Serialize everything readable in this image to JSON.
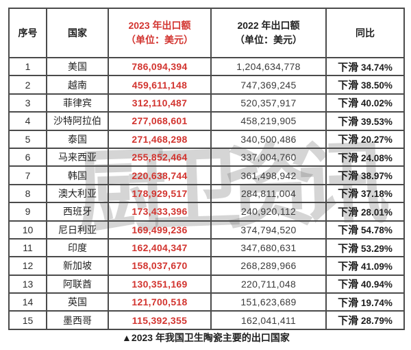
{
  "watermark": {
    "text": "厨卫资讯"
  },
  "colors": {
    "accent_red": "#d2342f",
    "border": "#4a4a4a",
    "text": "#262626"
  },
  "table": {
    "headers": [
      {
        "label": "序号"
      },
      {
        "label": "国家"
      },
      {
        "label": "2023 年出口额",
        "sub": "（单位：美元）",
        "accent": true
      },
      {
        "label": "2022 年出口额",
        "sub": "（单位：美元）",
        "accent": false
      },
      {
        "label": "同比"
      }
    ],
    "rows": [
      {
        "index": "1",
        "country": "美国",
        "export_2023": "786,094,394",
        "export_2022": "1,204,634,778",
        "trend": "下滑",
        "pct": "34.74%"
      },
      {
        "index": "2",
        "country": "越南",
        "export_2023": "459,611,148",
        "export_2022": "747,369,245",
        "trend": "下滑",
        "pct": "38.50%"
      },
      {
        "index": "3",
        "country": "菲律宾",
        "export_2023": "312,110,487",
        "export_2022": "520,357,917",
        "trend": "下滑",
        "pct": "40.02%"
      },
      {
        "index": "4",
        "country": "沙特阿拉伯",
        "export_2023": "277,068,601",
        "export_2022": "458,219,905",
        "trend": "下滑",
        "pct": "39.53%"
      },
      {
        "index": "5",
        "country": "泰国",
        "export_2023": "271,468,298",
        "export_2022": "340,500,486",
        "trend": "下滑",
        "pct": "20.27%"
      },
      {
        "index": "6",
        "country": "马来西亚",
        "export_2023": "255,852,464",
        "export_2022": "337,004,760",
        "trend": "下滑",
        "pct": "24.08%"
      },
      {
        "index": "7",
        "country": "韩国",
        "export_2023": "220,638,744",
        "export_2022": "361,498,942",
        "trend": "下滑",
        "pct": "38.97%"
      },
      {
        "index": "8",
        "country": "澳大利亚",
        "export_2023": "178,929,517",
        "export_2022": "284,811,004",
        "trend": "下滑",
        "pct": "37.18%"
      },
      {
        "index": "9",
        "country": "西班牙",
        "export_2023": "173,433,396",
        "export_2022": "240,920,112",
        "trend": "下滑",
        "pct": "28.01%"
      },
      {
        "index": "10",
        "country": "尼日利亚",
        "export_2023": "169,499,236",
        "export_2022": "374,794,520",
        "trend": "下滑",
        "pct": "54.78%"
      },
      {
        "index": "11",
        "country": "印度",
        "export_2023": "162,404,347",
        "export_2022": "347,680,631",
        "trend": "下滑",
        "pct": "53.29%"
      },
      {
        "index": "12",
        "country": "新加坡",
        "export_2023": "158,037,670",
        "export_2022": "268,289,966",
        "trend": "下滑",
        "pct": "41.09%"
      },
      {
        "index": "13",
        "country": "阿联酋",
        "export_2023": "130,351,169",
        "export_2022": "220,711,048",
        "trend": "下滑",
        "pct": "40.94%"
      },
      {
        "index": "14",
        "country": "英国",
        "export_2023": "121,700,518",
        "export_2022": "151,623,689",
        "trend": "下滑",
        "pct": "19.74%"
      },
      {
        "index": "15",
        "country": "墨西哥",
        "export_2023": "115,392,355",
        "export_2022": "162,041,411",
        "trend": "下滑",
        "pct": "28.79%"
      }
    ]
  },
  "caption": "▲2023 年我国卫生陶瓷主要的出口国家"
}
